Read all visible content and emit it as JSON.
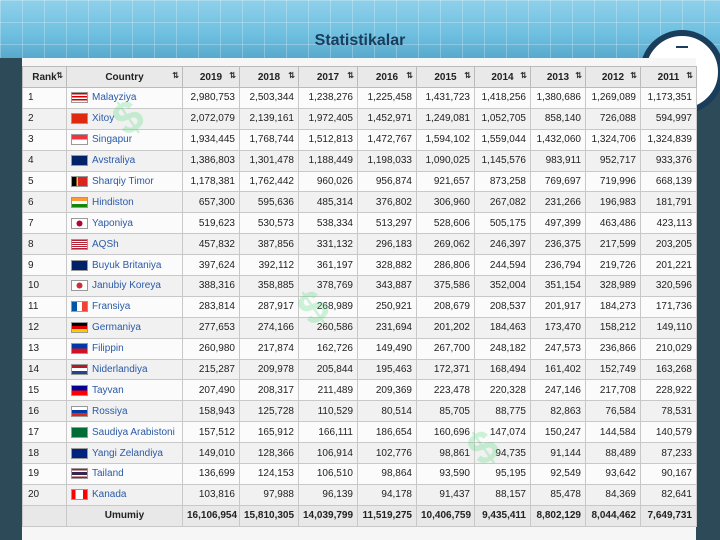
{
  "title": "Statistikalar",
  "columns": [
    "Rank",
    "Country",
    "2019",
    "2018",
    "2017",
    "2016",
    "2015",
    "2014",
    "2013",
    "2012",
    "2011"
  ],
  "rows": [
    {
      "rank": "1",
      "country": "Malayziya",
      "flag": "malaysia-flag",
      "values": [
        "2,980,753",
        "2,503,344",
        "1,238,276",
        "1,225,458",
        "1,431,723",
        "1,418,256",
        "1,380,686",
        "1,269,089",
        "1,173,351"
      ]
    },
    {
      "rank": "2",
      "country": "Xitoy",
      "flag": "china-flag",
      "values": [
        "2,072,079",
        "2,139,161",
        "1,972,405",
        "1,452,971",
        "1,249,081",
        "1,052,705",
        "858,140",
        "726,088",
        "594,997"
      ]
    },
    {
      "rank": "3",
      "country": "Singapur",
      "flag": "singapore-flag",
      "values": [
        "1,934,445",
        "1,768,744",
        "1,512,813",
        "1,472,767",
        "1,594,102",
        "1,559,044",
        "1,432,060",
        "1,324,706",
        "1,324,839"
      ]
    },
    {
      "rank": "4",
      "country": "Avstraliya",
      "flag": "australia-flag",
      "values": [
        "1,386,803",
        "1,301,478",
        "1,188,449",
        "1,198,033",
        "1,090,025",
        "1,145,576",
        "983,911",
        "952,717",
        "933,376"
      ]
    },
    {
      "rank": "5",
      "country": "Sharqiy Timor",
      "flag": "timor-leste-flag",
      "values": [
        "1,178,381",
        "1,762,442",
        "960,026",
        "956,874",
        "921,657",
        "873,258",
        "769,697",
        "719,996",
        "668,139"
      ]
    },
    {
      "rank": "6",
      "country": "Hindiston",
      "flag": "india-flag",
      "values": [
        "657,300",
        "595,636",
        "485,314",
        "376,802",
        "306,960",
        "267,082",
        "231,266",
        "196,983",
        "181,791"
      ]
    },
    {
      "rank": "7",
      "country": "Yaponiya",
      "flag": "japan-flag",
      "values": [
        "519,623",
        "530,573",
        "538,334",
        "513,297",
        "528,606",
        "505,175",
        "497,399",
        "463,486",
        "423,113"
      ]
    },
    {
      "rank": "8",
      "country": "AQSh",
      "flag": "usa-flag",
      "values": [
        "457,832",
        "387,856",
        "331,132",
        "296,183",
        "269,062",
        "246,397",
        "236,375",
        "217,599",
        "203,205"
      ]
    },
    {
      "rank": "9",
      "country": "Buyuk Britaniya",
      "flag": "uk-flag",
      "values": [
        "397,624",
        "392,112",
        "361,197",
        "328,882",
        "286,806",
        "244,594",
        "236,794",
        "219,726",
        "201,221"
      ]
    },
    {
      "rank": "10",
      "country": "Janubiy Koreya",
      "flag": "south-korea-flag",
      "values": [
        "388,316",
        "358,885",
        "378,769",
        "343,887",
        "375,586",
        "352,004",
        "351,154",
        "328,989",
        "320,596"
      ]
    },
    {
      "rank": "11",
      "country": "Fransiya",
      "flag": "france-flag",
      "values": [
        "283,814",
        "287,917",
        "268,989",
        "250,921",
        "208,679",
        "208,537",
        "201,917",
        "184,273",
        "171,736"
      ]
    },
    {
      "rank": "12",
      "country": "Germaniya",
      "flag": "germany-flag",
      "values": [
        "277,653",
        "274,166",
        "260,586",
        "231,694",
        "201,202",
        "184,463",
        "173,470",
        "158,212",
        "149,110"
      ]
    },
    {
      "rank": "13",
      "country": "Filippin",
      "flag": "philippines-flag",
      "values": [
        "260,980",
        "217,874",
        "162,726",
        "149,490",
        "267,700",
        "248,182",
        "247,573",
        "236,866",
        "210,029"
      ]
    },
    {
      "rank": "14",
      "country": "Niderlandiya",
      "flag": "netherlands-flag",
      "values": [
        "215,287",
        "209,978",
        "205,844",
        "195,463",
        "172,371",
        "168,494",
        "161,402",
        "152,749",
        "163,268"
      ]
    },
    {
      "rank": "15",
      "country": "Tayvan",
      "flag": "taiwan-flag",
      "values": [
        "207,490",
        "208,317",
        "211,489",
        "209,369",
        "223,478",
        "220,328",
        "247,146",
        "217,708",
        "228,922"
      ]
    },
    {
      "rank": "16",
      "country": "Rossiya",
      "flag": "russia-flag",
      "values": [
        "158,943",
        "125,728",
        "110,529",
        "80,514",
        "85,705",
        "88,775",
        "82,863",
        "76,584",
        "78,531"
      ]
    },
    {
      "rank": "17",
      "country": "Saudiya Arabistoni",
      "flag": "saudi-arabia-flag",
      "values": [
        "157,512",
        "165,912",
        "166,111",
        "186,654",
        "160,696",
        "147,074",
        "150,247",
        "144,584",
        "140,579"
      ]
    },
    {
      "rank": "18",
      "country": "Yangi Zelandiya",
      "flag": "new-zealand-flag",
      "values": [
        "149,010",
        "128,366",
        "106,914",
        "102,776",
        "98,861",
        "94,735",
        "91,144",
        "88,489",
        "87,233"
      ]
    },
    {
      "rank": "19",
      "country": "Tailand",
      "flag": "thailand-flag",
      "values": [
        "136,699",
        "124,153",
        "106,510",
        "98,864",
        "93,590",
        "95,195",
        "92,549",
        "93,642",
        "90,167"
      ]
    },
    {
      "rank": "20",
      "country": "Kanada",
      "flag": "canada-flag",
      "values": [
        "103,816",
        "97,988",
        "96,139",
        "94,178",
        "91,437",
        "88,157",
        "85,478",
        "84,369",
        "82,641"
      ]
    }
  ],
  "total": {
    "label": "Umumiy",
    "values": [
      "16,106,954",
      "15,810,305",
      "14,039,799",
      "11,519,275",
      "10,406,759",
      "9,435,411",
      "8,802,129",
      "8,044,462",
      "7,649,731"
    ]
  },
  "sort_icon": "sort-arrows-icon",
  "flag_styles": {
    "malaysia-flag": "repeating-linear-gradient(180deg,#cc0001 0 1.5px,#fff 1.5px 3px)",
    "china-flag": "#de2910",
    "singapore-flag": "linear-gradient(180deg,#ef3340 0 50%,#fff 50% 100%)",
    "australia-flag": "#012169",
    "timor-leste-flag": "linear-gradient(90deg,#000 0 30%,#ffc726 30% 40%,#dc241f 40% 100%)",
    "india-flag": "linear-gradient(180deg,#ff9933 0 33%,#fff 33% 66%,#138808 66% 100%)",
    "japan-flag": "radial-gradient(circle,#bc002d 0 3px,#fff 3px)",
    "usa-flag": "repeating-linear-gradient(180deg,#b22234 0 1px,#fff 1px 2px)",
    "uk-flag": "#012169",
    "south-korea-flag": "radial-gradient(circle,#cd2e3a 0 3px,#fff 3px)",
    "france-flag": "linear-gradient(90deg,#0055a4 0 33%,#fff 33% 66%,#ef4135 66% 100%)",
    "germany-flag": "linear-gradient(180deg,#000 0 33%,#dd0000 33% 66%,#ffce00 66% 100%)",
    "philippines-flag": "linear-gradient(180deg,#0038a8 0 50%,#ce1126 50% 100%)",
    "netherlands-flag": "linear-gradient(180deg,#ae1c28 0 33%,#fff 33% 66%,#21468b 66% 100%)",
    "taiwan-flag": "linear-gradient(180deg,#000095 0 50%,#fe0000 50% 100%)",
    "russia-flag": "linear-gradient(180deg,#fff 0 33%,#0039a6 33% 66%,#d52b1e 66% 100%)",
    "saudi-arabia-flag": "#006c35",
    "new-zealand-flag": "#00247d",
    "thailand-flag": "linear-gradient(180deg,#a51931 0 17%,#fff 17% 33%,#2d2a4a 33% 67%,#fff 67% 83%,#a51931 83% 100%)",
    "canada-flag": "linear-gradient(90deg,#ff0000 0 25%,#fff 25% 75%,#ff0000 75% 100%)"
  }
}
